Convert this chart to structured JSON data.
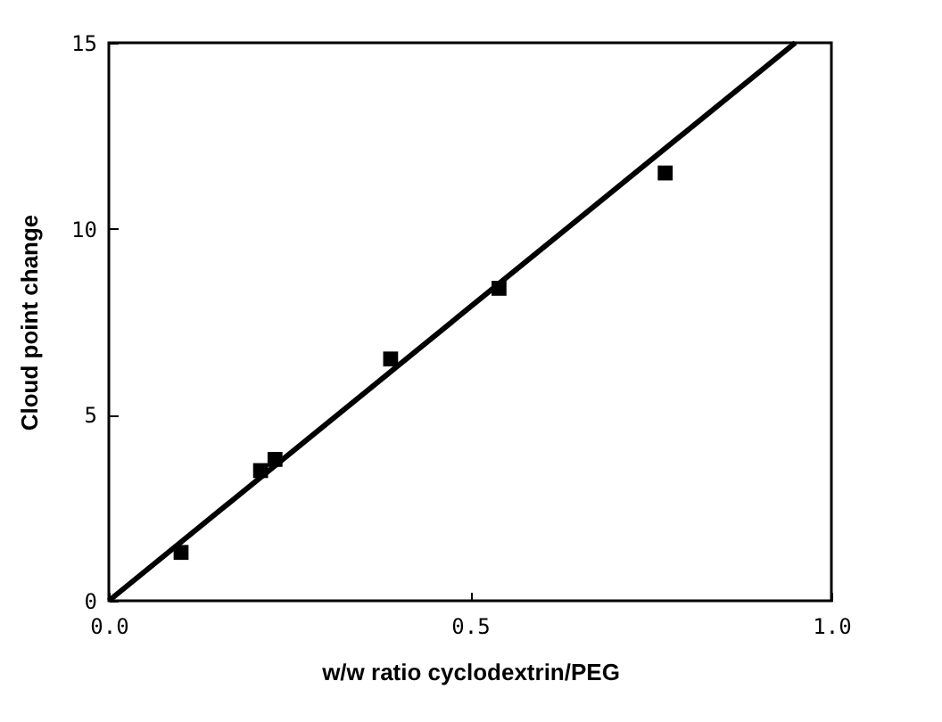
{
  "chart_data": {
    "type": "scatter",
    "xlabel": "w/w ratio cyclodextrin/PEG",
    "ylabel": "Cloud  point  change",
    "xlim": [
      0,
      1
    ],
    "ylim": [
      0,
      15
    ],
    "xticks": [
      {
        "value": 0,
        "label": "0.0"
      },
      {
        "value": 0.5,
        "label": "0.5"
      },
      {
        "value": 1,
        "label": "1.0"
      }
    ],
    "yticks": [
      0,
      5,
      10,
      15
    ],
    "grid": false,
    "marker": "square",
    "series": [
      {
        "color": "#000000",
        "x": [
          0.1,
          0.21,
          0.23,
          0.39,
          0.54,
          0.77
        ],
        "values": [
          1.3,
          3.5,
          3.8,
          6.5,
          8.4,
          11.5
        ]
      },
      {
        "type": "line",
        "color": "#000000",
        "marker": "none",
        "x": [
          0,
          0.95
        ],
        "values": [
          0,
          15
        ]
      }
    ]
  }
}
